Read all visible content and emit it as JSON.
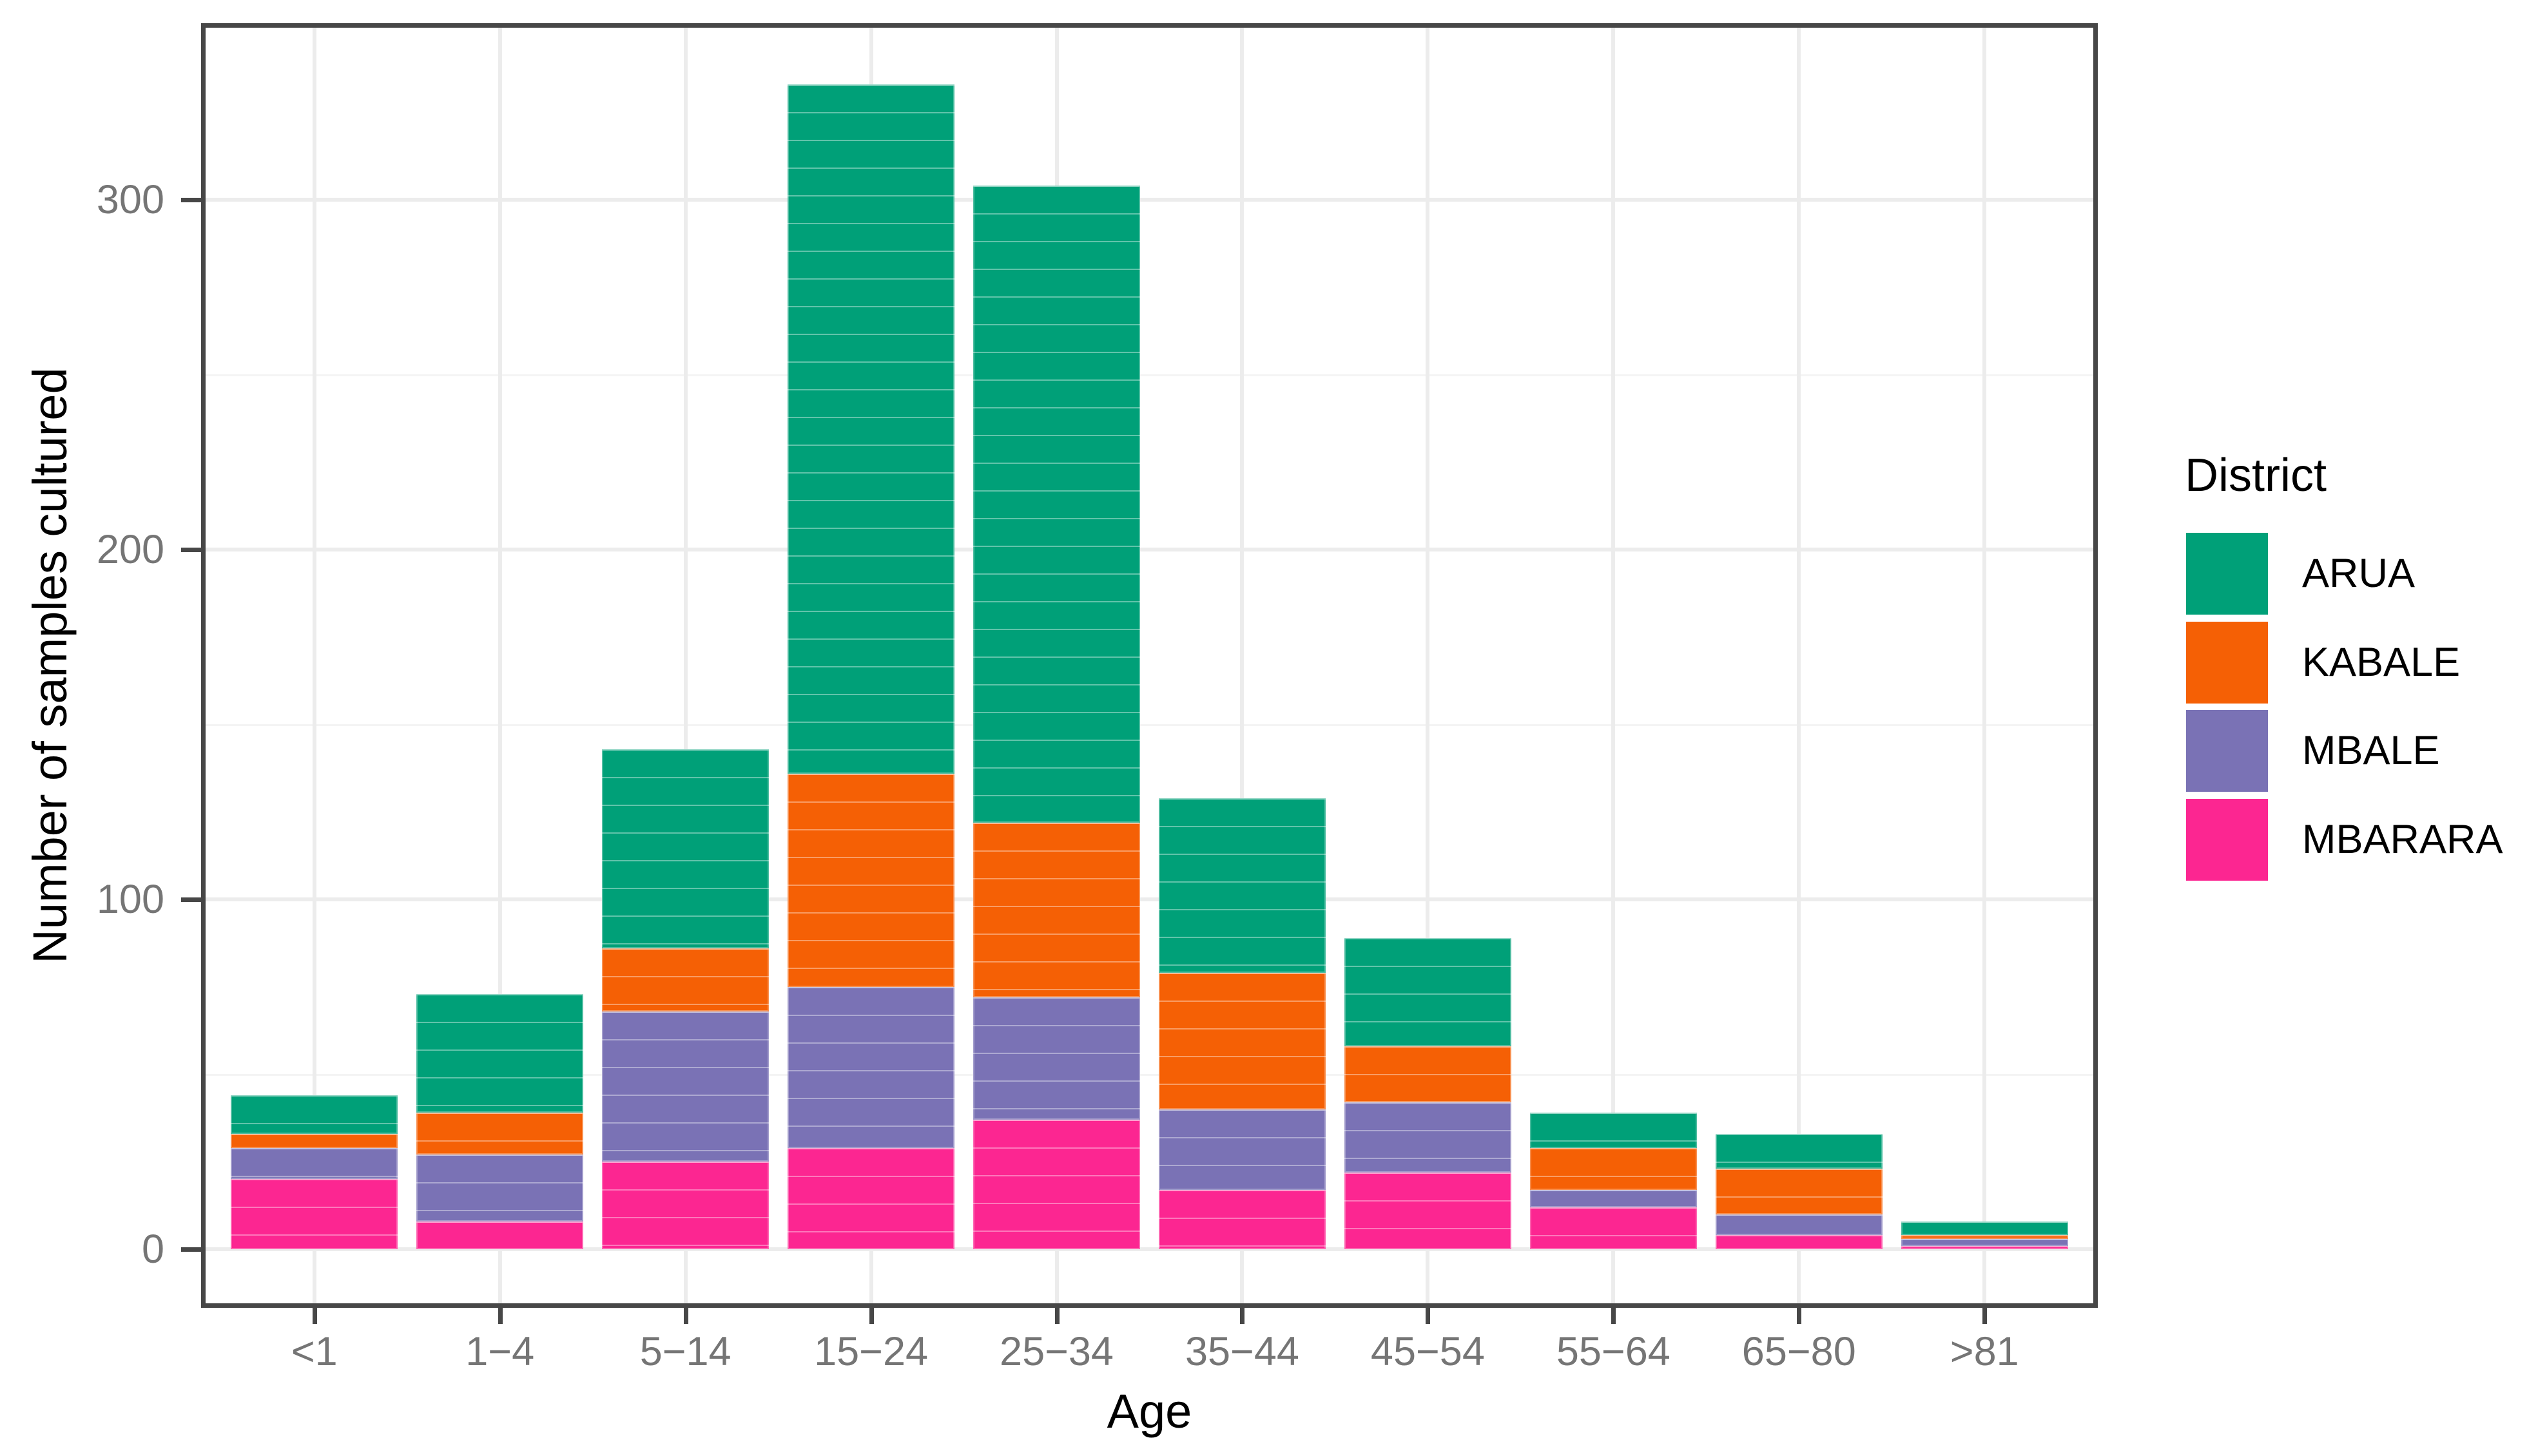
{
  "chart_data": {
    "type": "bar",
    "stacked": true,
    "title": "",
    "xlabel": "Age",
    "ylabel": "Number of samples cultured",
    "legend_title": "District",
    "legend_position": "right",
    "categories": [
      "<1",
      "1−4",
      "5−14",
      "15−24",
      "25−34",
      "35−44",
      "45−54",
      "55−64",
      "65−80",
      ">81"
    ],
    "series": [
      {
        "name": "ARUA",
        "color": "#00A078",
        "values": [
          11,
          34,
          57,
          197,
          182,
          50,
          31,
          10,
          10,
          4
        ]
      },
      {
        "name": "KABALE",
        "color": "#F56005",
        "values": [
          4,
          12,
          18,
          61,
          50,
          39,
          16,
          12,
          13,
          1
        ]
      },
      {
        "name": "MBALE",
        "color": "#7A72B5",
        "values": [
          9,
          19,
          43,
          46,
          35,
          23,
          20,
          5,
          6,
          2
        ]
      },
      {
        "name": "MBARARA",
        "color": "#FC2691",
        "values": [
          20,
          8,
          25,
          29,
          37,
          17,
          22,
          12,
          4,
          1
        ]
      }
    ],
    "stack_order_bottom_to_top": [
      "MBARARA",
      "MBALE",
      "KABALE",
      "ARUA"
    ],
    "totals": [
      44,
      73,
      143,
      333,
      304,
      129,
      89,
      39,
      33,
      8
    ],
    "ylim": [
      0,
      350
    ],
    "yticks": [
      0,
      100,
      200,
      300
    ],
    "ytick_labels": [
      "0",
      "100",
      "200",
      "300"
    ],
    "yticks_minor": [
      50,
      150,
      250
    ],
    "grid": true,
    "colors": {
      "grid_major": "#ececec",
      "grid_minor": "#f4f4f4",
      "panel_border": "#474747",
      "axis_text": "#757575",
      "axis_title": "#000000"
    }
  }
}
